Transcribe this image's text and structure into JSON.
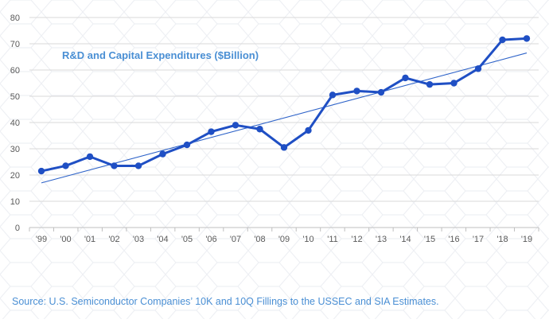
{
  "chart_data": {
    "type": "line",
    "title": "R&D and Capital Expenditures ($Billion)",
    "categories": [
      "'99",
      "'00",
      "'01",
      "'02",
      "'03",
      "'04",
      "'05",
      "'06",
      "'07",
      "'08",
      "'09",
      "'10",
      "'11",
      "'12",
      "'13",
      "'14",
      "'15",
      "'16",
      "'17",
      "'18",
      "'19"
    ],
    "series": [
      {
        "name": "R&D and Capital Expenditures",
        "values": [
          21.5,
          23.5,
          27,
          23.5,
          23.5,
          28,
          31.5,
          36.5,
          39,
          37.5,
          30.5,
          37,
          50.5,
          52,
          51.5,
          57,
          54.5,
          55,
          60.5,
          71.5,
          72
        ],
        "color": "#1f4fc4"
      }
    ],
    "trendline": {
      "type": "linear",
      "start": 17,
      "end": 66.5,
      "color": "#2f64c9"
    },
    "yticks": [
      0,
      10,
      20,
      30,
      40,
      50,
      60,
      70,
      80
    ],
    "ylim": [
      0,
      80
    ],
    "xlabel": "",
    "ylabel": "",
    "grid": "horizontal"
  },
  "source": "Source: U.S. Semiconductor Companies’ 10K and 10Q Fillings to the USSEC and SIA Estimates."
}
